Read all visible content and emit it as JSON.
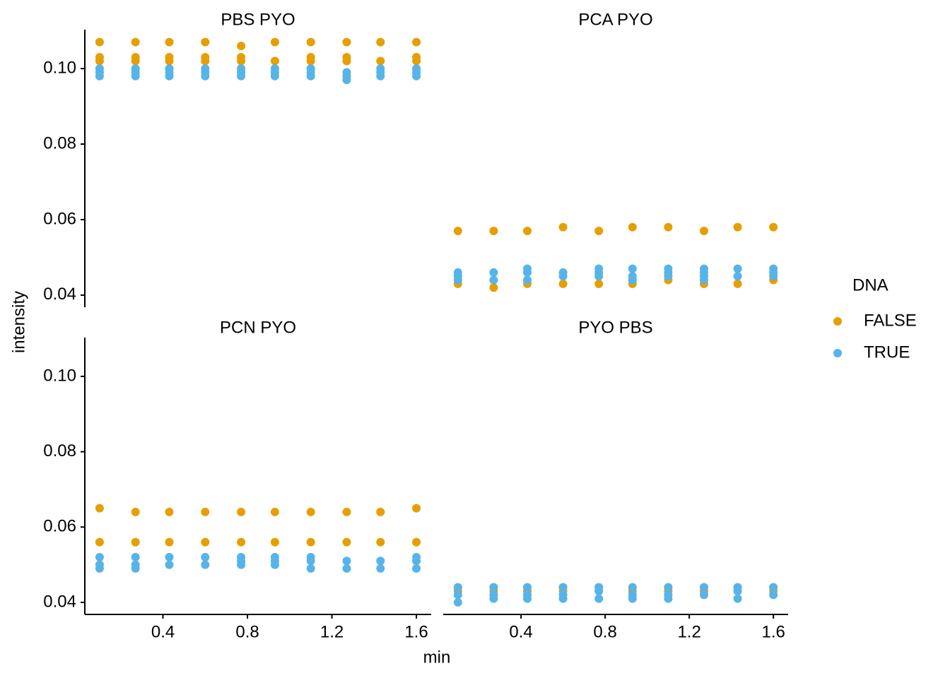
{
  "chart_data": {
    "type": "scatter",
    "xlabel": "min",
    "ylabel": "intensity",
    "legend_title": "DNA",
    "legend": "right",
    "xlim": [
      0.03,
      1.67
    ],
    "ylim": [
      0.0368,
      0.1103
    ],
    "xticks": [
      0.4,
      0.8,
      1.2,
      1.6
    ],
    "yticks": [
      0.04,
      0.06,
      0.08,
      {
        "value": 0.1,
        "label": "0.10"
      }
    ],
    "facets": [
      {
        "title": "PBS  PYO"
      },
      {
        "title": "PCA  PYO"
      },
      {
        "title": "PCN  PYO"
      },
      {
        "title": "PYO  PBS"
      }
    ],
    "series": [
      {
        "name": "FALSE",
        "color": "#E69F00",
        "facets": [
          {
            "x": [
              0.1,
              0.1,
              0.1,
              0.27,
              0.27,
              0.27,
              0.43,
              0.43,
              0.43,
              0.6,
              0.6,
              0.6,
              0.77,
              0.77,
              0.77,
              0.93,
              0.93,
              1.1,
              1.1,
              1.1,
              1.27,
              1.27,
              1.27,
              1.43,
              1.43,
              1.6,
              1.6,
              1.6
            ],
            "y": [
              0.107,
              0.103,
              0.102,
              0.107,
              0.103,
              0.102,
              0.107,
              0.103,
              0.102,
              0.107,
              0.103,
              0.102,
              0.106,
              0.103,
              0.102,
              0.107,
              0.102,
              0.107,
              0.103,
              0.102,
              0.107,
              0.103,
              0.102,
              0.107,
              0.102,
              0.107,
              0.103,
              0.102
            ]
          },
          {
            "x": [
              0.1,
              0.1,
              0.27,
              0.27,
              0.43,
              0.43,
              0.6,
              0.6,
              0.77,
              0.77,
              0.93,
              0.93,
              1.1,
              1.1,
              1.27,
              1.27,
              1.43,
              1.43,
              1.6,
              1.6
            ],
            "y": [
              0.057,
              0.043,
              0.057,
              0.042,
              0.057,
              0.043,
              0.058,
              0.043,
              0.057,
              0.043,
              0.058,
              0.043,
              0.058,
              0.044,
              0.057,
              0.043,
              0.058,
              0.043,
              0.058,
              0.044
            ]
          },
          {
            "x": [
              0.1,
              0.1,
              0.27,
              0.27,
              0.43,
              0.43,
              0.6,
              0.6,
              0.77,
              0.77,
              0.93,
              0.93,
              1.1,
              1.1,
              1.27,
              1.27,
              1.43,
              1.43,
              1.6,
              1.6
            ],
            "y": [
              0.065,
              0.056,
              0.064,
              0.056,
              0.064,
              0.056,
              0.064,
              0.056,
              0.064,
              0.056,
              0.064,
              0.056,
              0.064,
              0.056,
              0.064,
              0.056,
              0.064,
              0.056,
              0.065,
              0.056
            ]
          },
          {
            "x": [
              0.1,
              0.1,
              0.27,
              0.27,
              0.43,
              0.43,
              0.6,
              0.6,
              0.77,
              0.77,
              0.93,
              0.93,
              1.1,
              1.1,
              1.27,
              1.27,
              1.43,
              1.43,
              1.6,
              1.6
            ],
            "y": [
              0.044,
              0.043,
              0.044,
              0.043,
              0.044,
              0.043,
              0.044,
              0.043,
              0.044,
              0.043,
              0.044,
              0.043,
              0.044,
              0.043,
              0.044,
              0.043,
              0.044,
              0.043,
              0.044,
              0.043
            ]
          }
        ]
      },
      {
        "name": "TRUE",
        "color": "#56B4E9",
        "facets": [
          {
            "x": [
              0.1,
              0.1,
              0.1,
              0.27,
              0.27,
              0.27,
              0.43,
              0.43,
              0.43,
              0.6,
              0.6,
              0.6,
              0.77,
              0.77,
              0.77,
              0.93,
              0.93,
              0.93,
              1.1,
              1.1,
              1.1,
              1.27,
              1.27,
              1.27,
              1.43,
              1.43,
              1.43,
              1.6,
              1.6,
              1.6
            ],
            "y": [
              0.1,
              0.099,
              0.098,
              0.1,
              0.099,
              0.098,
              0.1,
              0.099,
              0.098,
              0.1,
              0.099,
              0.098,
              0.1,
              0.099,
              0.098,
              0.1,
              0.099,
              0.098,
              0.1,
              0.099,
              0.098,
              0.099,
              0.098,
              0.097,
              0.1,
              0.099,
              0.098,
              0.1,
              0.099,
              0.098
            ]
          },
          {
            "x": [
              0.1,
              0.1,
              0.1,
              0.27,
              0.27,
              0.43,
              0.43,
              0.43,
              0.6,
              0.6,
              0.77,
              0.77,
              0.77,
              0.93,
              0.93,
              0.93,
              1.1,
              1.1,
              1.1,
              1.27,
              1.27,
              1.27,
              1.27,
              1.43,
              1.43,
              1.6,
              1.6,
              1.6
            ],
            "y": [
              0.046,
              0.045,
              0.044,
              0.046,
              0.044,
              0.047,
              0.046,
              0.044,
              0.046,
              0.045,
              0.047,
              0.046,
              0.045,
              0.047,
              0.045,
              0.044,
              0.047,
              0.046,
              0.045,
              0.047,
              0.046,
              0.045,
              0.044,
              0.047,
              0.045,
              0.047,
              0.046,
              0.045
            ]
          },
          {
            "x": [
              0.1,
              0.1,
              0.1,
              0.27,
              0.27,
              0.27,
              0.43,
              0.43,
              0.6,
              0.6,
              0.77,
              0.77,
              0.77,
              0.93,
              0.93,
              0.93,
              1.1,
              1.1,
              1.1,
              1.27,
              1.27,
              1.43,
              1.43,
              1.6,
              1.6,
              1.6
            ],
            "y": [
              0.052,
              0.05,
              0.049,
              0.052,
              0.05,
              0.049,
              0.052,
              0.05,
              0.052,
              0.05,
              0.052,
              0.051,
              0.05,
              0.052,
              0.051,
              0.05,
              0.052,
              0.051,
              0.049,
              0.051,
              0.049,
              0.051,
              0.049,
              0.052,
              0.051,
              0.049
            ]
          },
          {
            "x": [
              0.1,
              0.1,
              0.1,
              0.27,
              0.27,
              0.27,
              0.43,
              0.43,
              0.43,
              0.6,
              0.6,
              0.6,
              0.77,
              0.77,
              0.77,
              0.93,
              0.93,
              0.93,
              1.1,
              1.1,
              1.1,
              1.27,
              1.27,
              1.43,
              1.43,
              1.43,
              1.6,
              1.6
            ],
            "y": [
              0.044,
              0.042,
              0.04,
              0.044,
              0.042,
              0.041,
              0.044,
              0.042,
              0.041,
              0.044,
              0.042,
              0.041,
              0.044,
              0.043,
              0.041,
              0.044,
              0.042,
              0.041,
              0.044,
              0.042,
              0.041,
              0.044,
              0.042,
              0.044,
              0.043,
              0.041,
              0.044,
              0.042
            ]
          }
        ]
      }
    ]
  }
}
